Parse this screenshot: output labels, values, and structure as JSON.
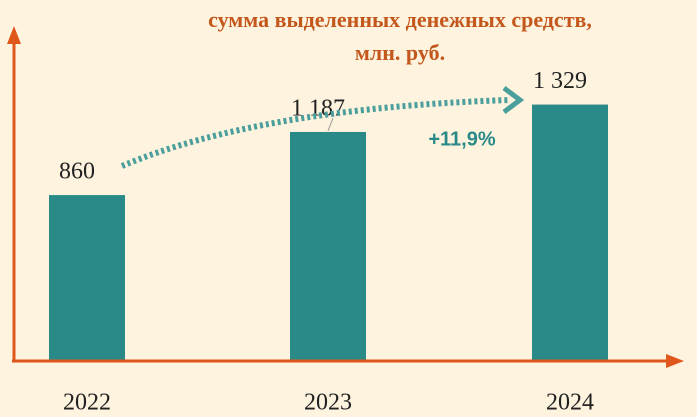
{
  "chart_data": {
    "type": "bar",
    "title": "сумма выделенных денежных средств,",
    "subtitle": "млн. руб.",
    "categories": [
      "2022",
      "2023",
      "2024"
    ],
    "values": [
      860,
      1187,
      1329
    ],
    "value_labels": [
      "860",
      "1 187",
      "1 329"
    ],
    "color": "#2a8a87",
    "ylim": [
      0,
      1700
    ],
    "annotation": "+11,9%"
  }
}
